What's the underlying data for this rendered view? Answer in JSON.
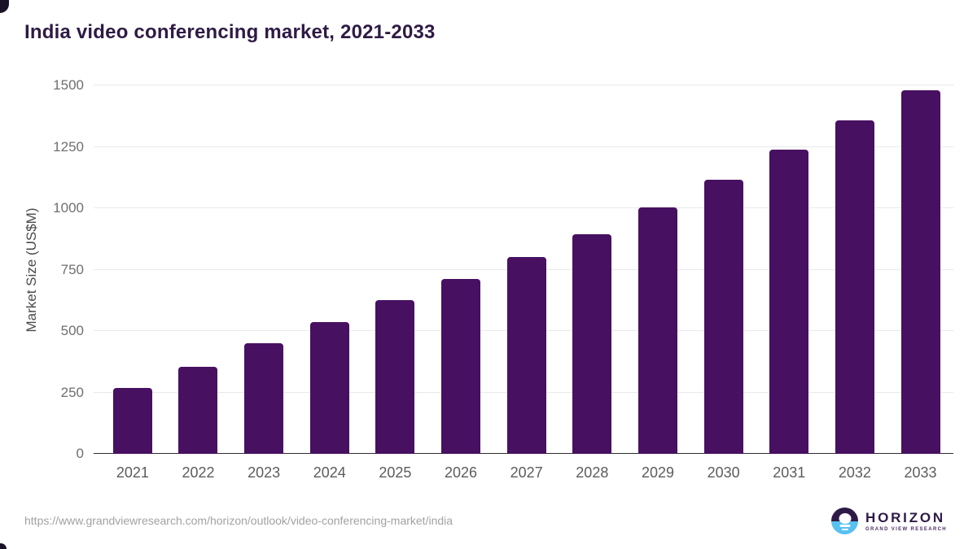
{
  "title": "India video conferencing market, 2021-2033",
  "chart_data": {
    "type": "bar",
    "title": "India video conferencing market, 2021-2033",
    "categories": [
      "2021",
      "2022",
      "2023",
      "2024",
      "2025",
      "2026",
      "2027",
      "2028",
      "2029",
      "2030",
      "2031",
      "2032",
      "2033"
    ],
    "values": [
      267,
      355,
      451,
      538,
      626,
      713,
      800,
      895,
      1002,
      1117,
      1240,
      1357,
      1481
    ],
    "xlabel": "",
    "ylabel": "Market Size (US$M)",
    "ylim": [
      0,
      1500
    ],
    "yticks": [
      0,
      250,
      500,
      750,
      1000,
      1250,
      1500
    ],
    "grid": true,
    "legend_position": "none",
    "bar_color": "#471061"
  },
  "colors": {
    "bar": "#471061",
    "title_text": "#2f1a45",
    "gridline": "#e9e9e9",
    "axis_line": "#2e2e2e",
    "tick_text": "#6f6f6f",
    "logo_dark": "#2e1a47",
    "logo_blue": "#57c1f0"
  },
  "footer": {
    "source_url": "https://www.grandviewresearch.com/horizon/outlook/video-conferencing-market/india",
    "logo": {
      "name": "HORIZON",
      "tagline": "GRAND VIEW RESEARCH",
      "icon": "sun-over-horizon-icon"
    }
  }
}
